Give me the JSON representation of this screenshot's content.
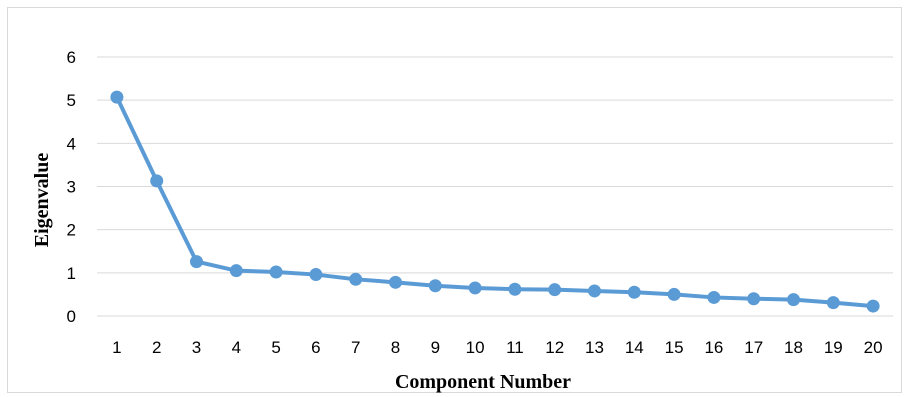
{
  "chart_data": {
    "type": "line",
    "title": "",
    "xlabel": "Component Number",
    "ylabel": "Eigenvalue",
    "x": [
      1,
      2,
      3,
      4,
      5,
      6,
      7,
      8,
      9,
      10,
      11,
      12,
      13,
      14,
      15,
      16,
      17,
      18,
      19,
      20
    ],
    "series": [
      {
        "values": [
          5.07,
          3.13,
          1.26,
          1.05,
          1.02,
          0.96,
          0.85,
          0.78,
          0.7,
          0.65,
          0.62,
          0.61,
          0.58,
          0.55,
          0.5,
          0.43,
          0.4,
          0.38,
          0.31,
          0.23
        ],
        "color": "#5b9bd5"
      }
    ],
    "ylim": [
      0,
      6
    ],
    "yticks": [
      0,
      1,
      2,
      3,
      4,
      5,
      6
    ],
    "grid": true,
    "legend": "none"
  }
}
